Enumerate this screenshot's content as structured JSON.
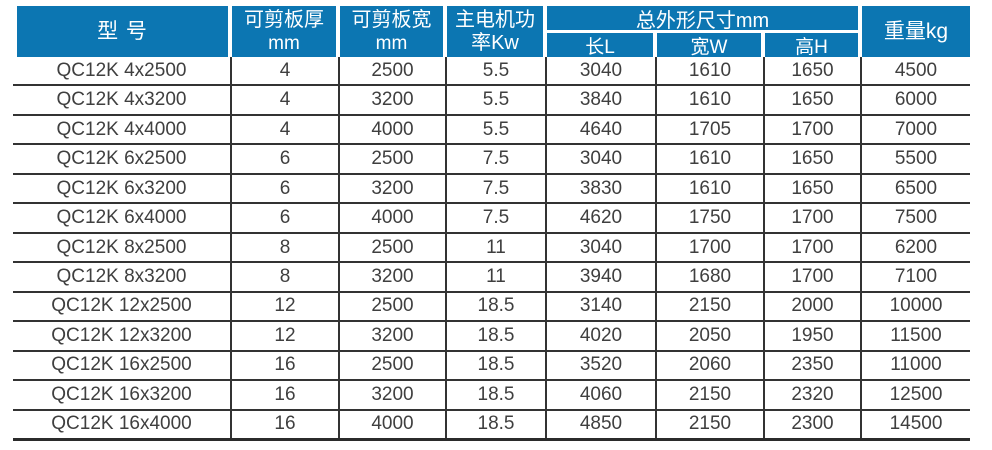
{
  "colors": {
    "header_bg": "#0c76b2",
    "header_text": "#ffffff",
    "body_text": "#3f3f3f",
    "grid_line": "#333333"
  },
  "table": {
    "header": {
      "model": "型 号",
      "thickness_line1": "可剪板厚",
      "thickness_line2": "mm",
      "width_line1": "可剪板宽",
      "width_line2": "mm",
      "power_line1": "主电机功",
      "power_line2": "率Kw",
      "dimensions_group": "总外形尺寸mm",
      "dim_length": "长L",
      "dim_width": "宽W",
      "dim_height": "高H",
      "weight": "重量kg"
    },
    "columns": [
      "model",
      "thickness_mm",
      "width_mm",
      "power_kw",
      "length_L",
      "width_W",
      "height_H",
      "weight_kg"
    ],
    "rows": [
      [
        "QC12K 4x2500",
        "4",
        "2500",
        "5.5",
        "3040",
        "1610",
        "1650",
        "4500"
      ],
      [
        "QC12K 4x3200",
        "4",
        "3200",
        "5.5",
        "3840",
        "1610",
        "1650",
        "6000"
      ],
      [
        "QC12K 4x4000",
        "4",
        "4000",
        "5.5",
        "4640",
        "1705",
        "1700",
        "7000"
      ],
      [
        "QC12K 6x2500",
        "6",
        "2500",
        "7.5",
        "3040",
        "1610",
        "1650",
        "5500"
      ],
      [
        "QC12K 6x3200",
        "6",
        "3200",
        "7.5",
        "3830",
        "1610",
        "1650",
        "6500"
      ],
      [
        "QC12K 6x4000",
        "6",
        "4000",
        "7.5",
        "4620",
        "1750",
        "1700",
        "7500"
      ],
      [
        "QC12K 8x2500",
        "8",
        "2500",
        "11",
        "3040",
        "1700",
        "1700",
        "6200"
      ],
      [
        "QC12K 8x3200",
        "8",
        "3200",
        "11",
        "3940",
        "1680",
        "1700",
        "7100"
      ],
      [
        "QC12K 12x2500",
        "12",
        "2500",
        "18.5",
        "3140",
        "2150",
        "2000",
        "10000"
      ],
      [
        "QC12K 12x3200",
        "12",
        "3200",
        "18.5",
        "4020",
        "2050",
        "1950",
        "11500"
      ],
      [
        "QC12K 16x2500",
        "16",
        "2500",
        "18.5",
        "3520",
        "2060",
        "2350",
        "11000"
      ],
      [
        "QC12K 16x3200",
        "16",
        "3200",
        "18.5",
        "4060",
        "2150",
        "2320",
        "12500"
      ],
      [
        "QC12K 16x4000",
        "16",
        "4000",
        "18.5",
        "4850",
        "2150",
        "2300",
        "14500"
      ]
    ]
  }
}
